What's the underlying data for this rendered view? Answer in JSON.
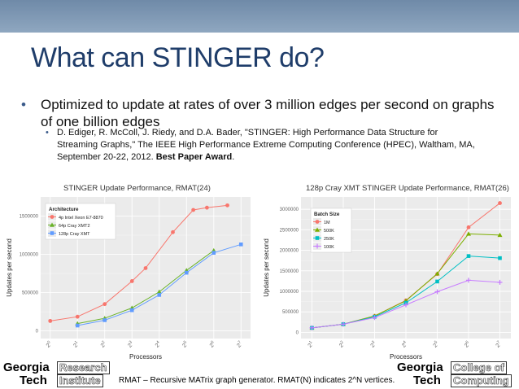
{
  "slide": {
    "title": "What can STINGER do?",
    "bullet_main": "Optimized to update at rates of over 3 million edges per second on graphs of one billion edges",
    "bullet_ref": "D. Ediger, R. McColl, J. Riedy, and D.A. Bader, \"STINGER: High Performance Data Structure for Streaming Graphs,\" The IEEE High Performance Extreme Computing Conference (HPEC), Waltham, MA, September 20-22, 2012.",
    "bullet_award": "Best Paper Award",
    "bullet_award_suffix": ".",
    "footer": "RMAT – Recursive MATrix graph generator.  RMAT(N) indicates 2^N vertices.",
    "logo_left": {
      "line1": "Georgia",
      "line2": "Tech",
      "box1": "Research",
      "box2": "Institute"
    },
    "logo_right": {
      "line1": "Georgia",
      "line2": "Tech",
      "box1": "College of",
      "box2": "Computing"
    }
  },
  "colors": {
    "title": "#1f3d6a",
    "topbar": "#7d97b3"
  },
  "chart_data": [
    {
      "type": "line",
      "title": "STINGER Update Performance, RMAT(24)",
      "xlabel": "Processors",
      "ylabel": "Updates per second",
      "x_tick_labels": [
        "2^0",
        "2^1",
        "2^2",
        "2^3",
        "2^4",
        "2^5",
        "2^6",
        "2^7"
      ],
      "y_ticks": [
        0,
        500000,
        1000000,
        1500000
      ],
      "ylim": [
        -100000,
        1750000
      ],
      "legend_title": "Architecture",
      "grid": true,
      "series": [
        {
          "name": "4p Intel Xeon E7-8870",
          "color": "#f8766d",
          "x": [
            0,
            1,
            2,
            3,
            3.5,
            4.5,
            5.25,
            5.75,
            6.5
          ],
          "values": [
            130000,
            185000,
            350000,
            650000,
            820000,
            1290000,
            1580000,
            1610000,
            1640000
          ]
        },
        {
          "name": "64p Cray XMT2",
          "color": "#6ab22a",
          "x": [
            1,
            2,
            3,
            4,
            5,
            6
          ],
          "values": [
            95000,
            165000,
            300000,
            510000,
            790000,
            1050000
          ]
        },
        {
          "name": "128p Cray XMT",
          "color": "#619cff",
          "x": [
            1,
            2,
            3,
            4,
            5,
            6,
            7
          ],
          "values": [
            70000,
            140000,
            270000,
            470000,
            760000,
            1020000,
            1130000
          ]
        }
      ]
    },
    {
      "type": "line",
      "title": "128p Cray XMT STINGER Update Performance, RMAT(26)",
      "xlabel": "Processors",
      "ylabel": "Updates per second",
      "x_tick_labels": [
        "2^1",
        "2^2",
        "2^3",
        "2^4",
        "2^5",
        "2^6",
        "2^7"
      ],
      "y_ticks": [
        0,
        500000,
        1000000,
        1500000,
        2000000,
        2500000,
        3000000
      ],
      "ylim": [
        -150000,
        3300000
      ],
      "legend_title": "Batch Size",
      "grid": true,
      "series": [
        {
          "name": "1M",
          "color": "#f8766d",
          "x": [
            1,
            2,
            3,
            4,
            5,
            6,
            7
          ],
          "values": [
            110000,
            200000,
            400000,
            780000,
            1420000,
            2560000,
            3150000
          ]
        },
        {
          "name": "500K",
          "color": "#7cae00",
          "x": [
            1,
            2,
            3,
            4,
            5,
            6,
            7
          ],
          "values": [
            110000,
            200000,
            400000,
            770000,
            1430000,
            2400000,
            2370000
          ]
        },
        {
          "name": "250K",
          "color": "#00bfc4",
          "x": [
            1,
            2,
            3,
            4,
            5,
            6,
            7
          ],
          "values": [
            110000,
            200000,
            380000,
            720000,
            1240000,
            1860000,
            1810000
          ]
        },
        {
          "name": "100K",
          "color": "#c77cff",
          "x": [
            1,
            2,
            3,
            4,
            5,
            6,
            7
          ],
          "values": [
            110000,
            200000,
            360000,
            670000,
            990000,
            1270000,
            1220000
          ]
        }
      ]
    }
  ]
}
